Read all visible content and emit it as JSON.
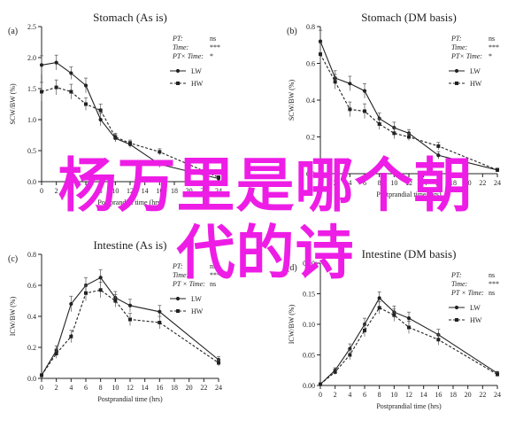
{
  "overlay_text": {
    "line1": "杨万里是哪个朝",
    "line2": "代的诗"
  },
  "colors": {
    "overlay": "#ee1de6",
    "ink": "#222222"
  },
  "chart_data": [
    {
      "type": "line",
      "panel_letter": "a",
      "title": "Stomach (As is)",
      "xlabel": "Postprandial time (hrs)",
      "ylabel": "SCW/BW (%)",
      "xlim": [
        0,
        24
      ],
      "ylim": [
        0,
        2.5
      ],
      "xticks": [
        0,
        2,
        4,
        6,
        8,
        10,
        12,
        14,
        16,
        18,
        20,
        22,
        24
      ],
      "yticks": [
        "0.0",
        "0.5",
        "1.0",
        "1.5",
        "2.0",
        "2.5"
      ],
      "stats": [
        {
          "label": "PT:",
          "value": "ns"
        },
        {
          "label": "Time:",
          "value": "***"
        },
        {
          "label": "PT× Time:",
          "value": "*"
        }
      ],
      "legend_position": "right",
      "series": [
        {
          "name": "LW",
          "style": "solid",
          "x": [
            0,
            2,
            4,
            6,
            8,
            10,
            12,
            16,
            24
          ],
          "y": [
            1.88,
            1.92,
            1.75,
            1.55,
            1.0,
            0.7,
            0.6,
            0.28,
            0.05
          ],
          "err": [
            0.15,
            0.12,
            0.1,
            0.12,
            0.1,
            0.06,
            0.05,
            0.05,
            0.02
          ]
        },
        {
          "name": "HW",
          "style": "dashed",
          "x": [
            0,
            2,
            4,
            6,
            8,
            10,
            12,
            16,
            24
          ],
          "y": [
            1.45,
            1.52,
            1.45,
            1.25,
            1.15,
            0.72,
            0.62,
            0.48,
            0.07
          ],
          "err": [
            0.15,
            0.12,
            0.12,
            0.1,
            0.1,
            0.06,
            0.05,
            0.05,
            0.02
          ]
        }
      ]
    },
    {
      "type": "line",
      "panel_letter": "b",
      "title": "Stomach (DM basis)",
      "xlabel": "Postprandial time (hrs)",
      "ylabel": "SCW/BW (%)",
      "xlim": [
        0,
        24
      ],
      "ylim": [
        0,
        0.8
      ],
      "xticks": [
        0,
        2,
        4,
        6,
        8,
        10,
        12,
        14,
        16,
        18,
        20,
        22,
        24
      ],
      "yticks": [
        "0.0",
        "0.2",
        "0.4",
        "0.6",
        "0.8"
      ],
      "stats": [
        {
          "label": "PT:",
          "value": "ns"
        },
        {
          "label": "Time:",
          "value": "***"
        },
        {
          "label": "PT× Time:",
          "value": "*"
        }
      ],
      "legend_position": "right",
      "series": [
        {
          "name": "LW",
          "style": "solid",
          "x": [
            0,
            2,
            4,
            6,
            8,
            10,
            12,
            16,
            24
          ],
          "y": [
            0.72,
            0.52,
            0.49,
            0.45,
            0.3,
            0.25,
            0.22,
            0.1,
            0.02
          ],
          "err": [
            0.06,
            0.04,
            0.04,
            0.04,
            0.03,
            0.03,
            0.02,
            0.02,
            0.01
          ]
        },
        {
          "name": "HW",
          "style": "dashed",
          "x": [
            0,
            2,
            4,
            6,
            8,
            10,
            12,
            16,
            24
          ],
          "y": [
            0.65,
            0.5,
            0.35,
            0.34,
            0.27,
            0.22,
            0.2,
            0.15,
            0.02
          ],
          "err": [
            0.06,
            0.04,
            0.04,
            0.04,
            0.03,
            0.03,
            0.02,
            0.02,
            0.01
          ]
        }
      ]
    },
    {
      "type": "line",
      "panel_letter": "c",
      "title": "Intestine (As is)",
      "xlabel": "Postprandial time (hrs)",
      "ylabel": "ICW/BW (%)",
      "xlim": [
        0,
        24
      ],
      "ylim": [
        0,
        0.8
      ],
      "xticks": [
        0,
        2,
        4,
        6,
        8,
        10,
        12,
        14,
        16,
        18,
        20,
        22,
        24
      ],
      "yticks": [
        "0.0",
        "0.2",
        "0.4",
        "0.6",
        "0.8"
      ],
      "stats": [
        {
          "label": "PT:",
          "value": "ns"
        },
        {
          "label": "Time:",
          "value": "***"
        },
        {
          "label": "PT × Time:",
          "value": "ns"
        }
      ],
      "legend_position": "right",
      "series": [
        {
          "name": "LW",
          "style": "solid",
          "x": [
            0,
            2,
            4,
            6,
            8,
            10,
            12,
            16,
            24
          ],
          "y": [
            0.02,
            0.18,
            0.48,
            0.6,
            0.65,
            0.52,
            0.47,
            0.43,
            0.12
          ],
          "err": [
            0.01,
            0.03,
            0.05,
            0.05,
            0.05,
            0.04,
            0.04,
            0.04,
            0.02
          ]
        },
        {
          "name": "HW",
          "style": "dashed",
          "x": [
            0,
            2,
            4,
            6,
            8,
            10,
            12,
            16,
            24
          ],
          "y": [
            0.02,
            0.16,
            0.27,
            0.55,
            0.57,
            0.5,
            0.38,
            0.36,
            0.1
          ],
          "err": [
            0.01,
            0.03,
            0.04,
            0.05,
            0.05,
            0.04,
            0.04,
            0.04,
            0.02
          ]
        }
      ]
    },
    {
      "type": "line",
      "panel_letter": "d",
      "title": "Intestine (DM basis)",
      "xlabel": "Postprandial time (hrs)",
      "ylabel": "ICW/BW (%)",
      "xlim": [
        0,
        24
      ],
      "ylim": [
        0,
        0.2
      ],
      "xticks": [
        0,
        2,
        4,
        6,
        8,
        10,
        12,
        14,
        16,
        18,
        20,
        22,
        24
      ],
      "yticks": [
        "0.00",
        "0.05",
        "0.10",
        "0.15",
        "0.20"
      ],
      "stats": [
        {
          "label": "PT:",
          "value": "ns"
        },
        {
          "label": "Time:",
          "value": "***"
        },
        {
          "label": "PT × Time:",
          "value": "ns"
        }
      ],
      "legend_position": "right",
      "series": [
        {
          "name": "LW",
          "style": "solid",
          "x": [
            0,
            2,
            4,
            6,
            8,
            10,
            12,
            16,
            24
          ],
          "y": [
            0.002,
            0.025,
            0.06,
            0.1,
            0.143,
            0.12,
            0.11,
            0.083,
            0.02
          ],
          "err": [
            0.001,
            0.004,
            0.008,
            0.01,
            0.01,
            0.01,
            0.01,
            0.009,
            0.003
          ]
        },
        {
          "name": "HW",
          "style": "dashed",
          "x": [
            0,
            2,
            4,
            6,
            8,
            10,
            12,
            16,
            24
          ],
          "y": [
            0.002,
            0.022,
            0.05,
            0.09,
            0.127,
            0.115,
            0.095,
            0.075,
            0.018
          ],
          "err": [
            0.001,
            0.004,
            0.008,
            0.01,
            0.01,
            0.01,
            0.01,
            0.009,
            0.003
          ]
        }
      ]
    }
  ]
}
